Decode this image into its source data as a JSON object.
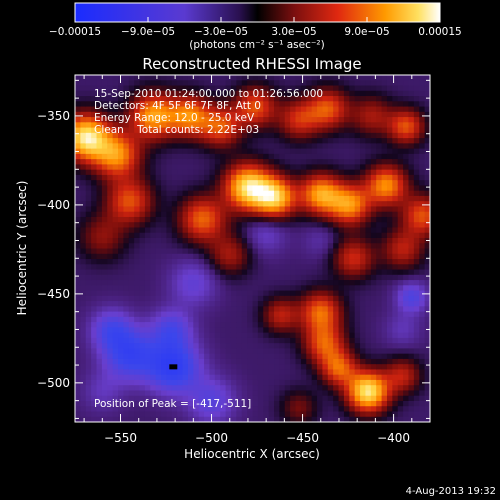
{
  "chart_data": {
    "type": "heatmap",
    "title": "Reconstructed RHESSI Image",
    "xlabel": "Heliocentric X (arcsec)",
    "ylabel": "Heliocentric Y (arcsec)",
    "xlim": [
      -575,
      -380
    ],
    "ylim": [
      -522,
      -327
    ],
    "x_ticks": [
      -550,
      -500,
      -450,
      -400
    ],
    "y_ticks": [
      -350,
      -400,
      -450,
      -500
    ],
    "x_tick_labels": [
      "−550",
      "−500",
      "−450",
      "−400"
    ],
    "y_tick_labels": [
      "−350",
      "−400",
      "−450",
      "−500"
    ],
    "colorbar": {
      "range": [
        -0.00015,
        0.00015
      ],
      "tick_labels": [
        "−0.00015",
        "−9.0e−05",
        "−3.0e−05",
        "3.0e−05",
        "9.0e−05",
        "0.00015"
      ],
      "tick_values": [
        -0.00015,
        -9e-05,
        -3e-05,
        3e-05,
        9e-05,
        0.00015
      ],
      "unit_label": "(photons cm⁻² s⁻¹ asec⁻²)"
    },
    "annotations": [
      "15-Sep-2010 01:24:00.000 to 01:26:56.000",
      "Detectors: 4F 5F 6F 7F 8F, Att 0",
      "Energy Range: 12.0 - 25.0 keV",
      "Clean    Total counts: 2.22E+03"
    ],
    "peak_label": "Position of Peak = [-417,-511]",
    "peak": [
      -417,
      -511
    ],
    "min_marker": [
      -521,
      -491
    ],
    "sources": [
      {
        "x": -569,
        "y": -362,
        "v": 1.0,
        "s": 9
      },
      {
        "x": -552,
        "y": -372,
        "v": 0.7,
        "s": 9
      },
      {
        "x": -532,
        "y": -350,
        "v": 0.75,
        "s": 9
      },
      {
        "x": -512,
        "y": -350,
        "v": 0.65,
        "s": 8
      },
      {
        "x": -495,
        "y": -356,
        "v": 0.55,
        "s": 8
      },
      {
        "x": -476,
        "y": -345,
        "v": 0.55,
        "s": 8
      },
      {
        "x": -452,
        "y": -352,
        "v": 0.45,
        "s": 8
      },
      {
        "x": -436,
        "y": -346,
        "v": 0.55,
        "s": 8
      },
      {
        "x": -412,
        "y": -350,
        "v": 0.35,
        "s": 8
      },
      {
        "x": -393,
        "y": -356,
        "v": 0.55,
        "s": 7
      },
      {
        "x": -545,
        "y": -398,
        "v": 0.55,
        "s": 9
      },
      {
        "x": -505,
        "y": -408,
        "v": 0.6,
        "s": 9
      },
      {
        "x": -480,
        "y": -390,
        "v": 0.95,
        "s": 9
      },
      {
        "x": -465,
        "y": -396,
        "v": 0.85,
        "s": 8
      },
      {
        "x": -440,
        "y": -394,
        "v": 0.75,
        "s": 8
      },
      {
        "x": -424,
        "y": -400,
        "v": 0.7,
        "s": 8
      },
      {
        "x": -404,
        "y": -389,
        "v": 0.7,
        "s": 8
      },
      {
        "x": -384,
        "y": -406,
        "v": 0.55,
        "s": 8
      },
      {
        "x": -560,
        "y": -418,
        "v": 0.3,
        "s": 9
      },
      {
        "x": -490,
        "y": -428,
        "v": 0.35,
        "s": 8
      },
      {
        "x": -422,
        "y": -430,
        "v": 0.45,
        "s": 8
      },
      {
        "x": -395,
        "y": -425,
        "v": 0.4,
        "s": 8
      },
      {
        "x": -440,
        "y": -460,
        "v": 0.6,
        "s": 8
      },
      {
        "x": -438,
        "y": -478,
        "v": 0.55,
        "s": 8
      },
      {
        "x": -462,
        "y": -462,
        "v": 0.4,
        "s": 7
      },
      {
        "x": -414,
        "y": -505,
        "v": 1.0,
        "s": 8
      },
      {
        "x": -430,
        "y": -492,
        "v": 0.55,
        "s": 7
      },
      {
        "x": -452,
        "y": -514,
        "v": 0.25,
        "s": 7
      },
      {
        "x": -395,
        "y": -496,
        "v": 0.4,
        "s": 7
      },
      {
        "x": -555,
        "y": -470,
        "v": -0.35,
        "s": 8
      },
      {
        "x": -545,
        "y": -484,
        "v": -0.5,
        "s": 10
      },
      {
        "x": -521,
        "y": -491,
        "v": -0.6,
        "s": 10
      },
      {
        "x": -522,
        "y": -470,
        "v": -0.35,
        "s": 8
      },
      {
        "x": -500,
        "y": -510,
        "v": -0.3,
        "s": 9
      },
      {
        "x": -510,
        "y": -444,
        "v": -0.25,
        "s": 9
      },
      {
        "x": -560,
        "y": -505,
        "v": -0.15,
        "s": 8
      },
      {
        "x": -390,
        "y": -452,
        "v": -0.35,
        "s": 6
      },
      {
        "x": -395,
        "y": -470,
        "v": -0.15,
        "s": 7
      },
      {
        "x": -470,
        "y": -416,
        "v": -0.2,
        "s": 8
      },
      {
        "x": -440,
        "y": -420,
        "v": -0.12,
        "s": 7
      }
    ]
  },
  "footer": {
    "date": "4-Aug-2013 19:32"
  }
}
